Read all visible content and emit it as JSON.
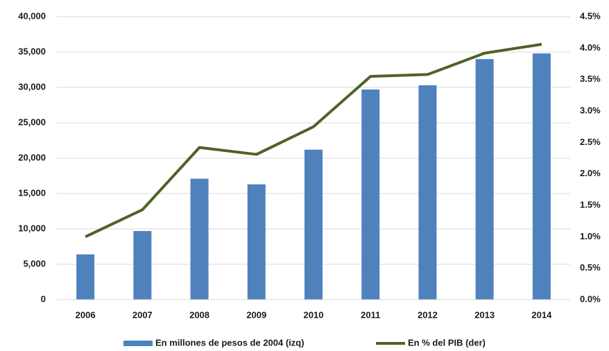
{
  "chart_data": {
    "type": "bar+line",
    "categories": [
      "2006",
      "2007",
      "2008",
      "2009",
      "2010",
      "2011",
      "2012",
      "2013",
      "2014"
    ],
    "series": [
      {
        "name": "En millones de pesos de 2004 (izq)",
        "color": "#4f81bd",
        "type": "bar",
        "values": [
          6400,
          9700,
          17100,
          16300,
          21200,
          29700,
          30300,
          34000,
          34800
        ]
      },
      {
        "name": "En % del PIB (der)",
        "color": "#4f6228",
        "type": "line",
        "axis": "y2",
        "values": [
          1.0,
          1.43,
          2.42,
          2.31,
          2.75,
          3.55,
          3.58,
          3.92,
          4.06
        ]
      }
    ],
    "ylim": [
      0,
      40000
    ],
    "yticks": [
      0,
      {
        "value": 5000,
        "label": "5,000"
      },
      {
        "value": 10000,
        "label": "10,000"
      },
      {
        "value": 15000,
        "label": "15,000"
      },
      {
        "value": 20000,
        "label": "20,000"
      },
      {
        "value": 25000,
        "label": "25,000"
      },
      {
        "value": 30000,
        "label": "30,000"
      },
      {
        "value": 35000,
        "label": "35,000"
      },
      {
        "value": 40000,
        "label": "40,000"
      }
    ],
    "y2lim": [
      0,
      4.5
    ],
    "y2ticks": [
      {
        "value": 0,
        "label": "0.0%"
      },
      {
        "value": 0.5,
        "label": "0.5%"
      },
      {
        "value": 1,
        "label": "1.0%"
      },
      {
        "value": 1.5,
        "label": "1.5%"
      },
      {
        "value": 2,
        "label": "2.0%"
      },
      {
        "value": 2.5,
        "label": "2.5%"
      },
      {
        "value": 3,
        "label": "3.0%"
      },
      {
        "value": 3.5,
        "label": "3.5%"
      },
      {
        "value": 4,
        "label": "4.0%"
      },
      {
        "value": 4.5,
        "label": "4.5%"
      }
    ],
    "grid": true,
    "legend": "bottom"
  }
}
